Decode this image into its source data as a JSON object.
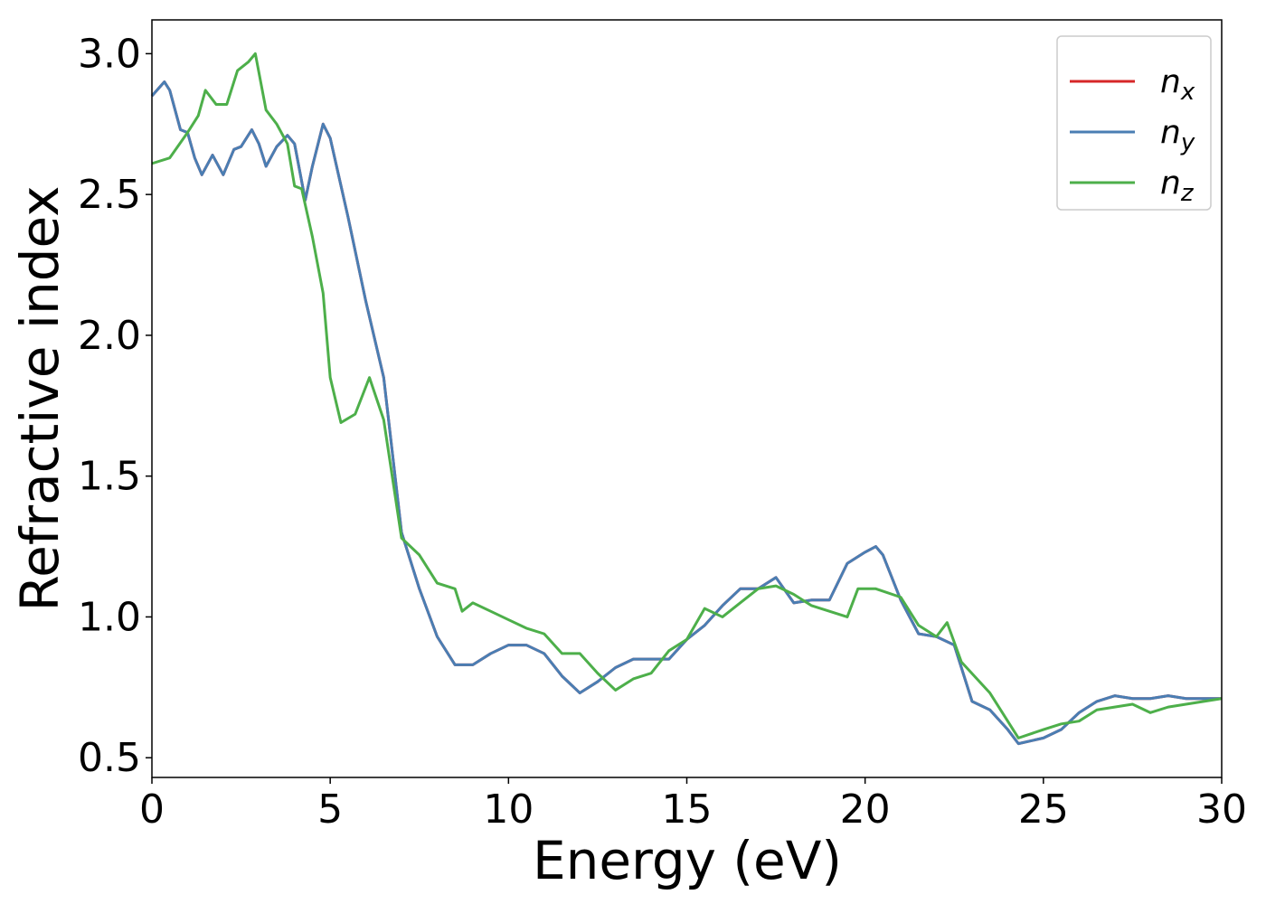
{
  "chart_data": {
    "type": "line",
    "xlabel": "Energy (eV)",
    "ylabel": "Refractive index",
    "xlim": [
      0,
      30
    ],
    "ylim": [
      0.43,
      3.12
    ],
    "xticks": [
      0,
      5,
      10,
      15,
      20,
      25,
      30
    ],
    "yticks": [
      0.5,
      {
        "value": 1,
        "label": "1.0"
      },
      1.5,
      {
        "value": 2,
        "label": "2.0"
      },
      2.5,
      {
        "value": 3,
        "label": "3.0"
      }
    ],
    "grid": false,
    "legend": "upper right",
    "series": [
      {
        "name": "nx",
        "color": "#d62728",
        "x": [
          0,
          0.35,
          0.5,
          0.8,
          1.0,
          1.2,
          1.4,
          1.7,
          2.0,
          2.3,
          2.5,
          2.8,
          3.0,
          3.2,
          3.5,
          3.8,
          4.0,
          4.3,
          4.5,
          4.8,
          5.0,
          5.5,
          6.0,
          6.5,
          7.0,
          7.5,
          8.0,
          8.5,
          9.0,
          9.5,
          10,
          10.5,
          11,
          11.5,
          12,
          12.5,
          13,
          13.5,
          14,
          14.5,
          15,
          15.5,
          16,
          16.5,
          17,
          17.5,
          18,
          18.5,
          19,
          19.5,
          20,
          20.3,
          20.5,
          21,
          21.5,
          22,
          22.5,
          23,
          23.5,
          24,
          24.3,
          25,
          25.5,
          26,
          26.5,
          27,
          27.5,
          28,
          28.5,
          29,
          29.5,
          30
        ],
        "values": [
          2.85,
          2.9,
          2.87,
          2.73,
          2.72,
          2.63,
          2.57,
          2.64,
          2.57,
          2.66,
          2.67,
          2.73,
          2.68,
          2.6,
          2.67,
          2.71,
          2.68,
          2.48,
          2.6,
          2.75,
          2.7,
          2.42,
          2.12,
          1.85,
          1.3,
          1.1,
          0.93,
          0.83,
          0.83,
          0.87,
          0.9,
          0.9,
          0.87,
          0.79,
          0.73,
          0.77,
          0.82,
          0.85,
          0.85,
          0.85,
          0.92,
          0.97,
          1.04,
          1.1,
          1.1,
          1.14,
          1.05,
          1.06,
          1.06,
          1.19,
          1.23,
          1.25,
          1.22,
          1.06,
          0.94,
          0.93,
          0.9,
          0.7,
          0.67,
          0.6,
          0.55,
          0.57,
          0.6,
          0.66,
          0.7,
          0.72,
          0.71,
          0.71,
          0.72,
          0.71,
          0.71,
          0.71
        ]
      },
      {
        "name": "ny",
        "color": "#4a7eb3",
        "x": [
          0,
          0.35,
          0.5,
          0.8,
          1.0,
          1.2,
          1.4,
          1.7,
          2.0,
          2.3,
          2.5,
          2.8,
          3.0,
          3.2,
          3.5,
          3.8,
          4.0,
          4.3,
          4.5,
          4.8,
          5.0,
          5.5,
          6.0,
          6.5,
          7.0,
          7.5,
          8.0,
          8.5,
          9.0,
          9.5,
          10,
          10.5,
          11,
          11.5,
          12,
          12.5,
          13,
          13.5,
          14,
          14.5,
          15,
          15.5,
          16,
          16.5,
          17,
          17.5,
          18,
          18.5,
          19,
          19.5,
          20,
          20.3,
          20.5,
          21,
          21.5,
          22,
          22.5,
          23,
          23.5,
          24,
          24.3,
          25,
          25.5,
          26,
          26.5,
          27,
          27.5,
          28,
          28.5,
          29,
          29.5,
          30
        ],
        "values": [
          2.85,
          2.9,
          2.87,
          2.73,
          2.72,
          2.63,
          2.57,
          2.64,
          2.57,
          2.66,
          2.67,
          2.73,
          2.68,
          2.6,
          2.67,
          2.71,
          2.68,
          2.48,
          2.6,
          2.75,
          2.7,
          2.42,
          2.12,
          1.85,
          1.3,
          1.1,
          0.93,
          0.83,
          0.83,
          0.87,
          0.9,
          0.9,
          0.87,
          0.79,
          0.73,
          0.77,
          0.82,
          0.85,
          0.85,
          0.85,
          0.92,
          0.97,
          1.04,
          1.1,
          1.1,
          1.14,
          1.05,
          1.06,
          1.06,
          1.19,
          1.23,
          1.25,
          1.22,
          1.06,
          0.94,
          0.93,
          0.9,
          0.7,
          0.67,
          0.6,
          0.55,
          0.57,
          0.6,
          0.66,
          0.7,
          0.72,
          0.71,
          0.71,
          0.72,
          0.71,
          0.71,
          0.71
        ]
      },
      {
        "name": "nz",
        "color": "#4daf4a",
        "x": [
          0,
          0.5,
          1.0,
          1.3,
          1.5,
          1.8,
          2.1,
          2.4,
          2.7,
          2.9,
          3.2,
          3.5,
          3.8,
          4.0,
          4.2,
          4.5,
          4.8,
          5.0,
          5.3,
          5.7,
          6.1,
          6.5,
          7.0,
          7.5,
          8.0,
          8.5,
          8.7,
          9.0,
          9.5,
          10,
          10.5,
          11,
          11.5,
          12,
          12.5,
          13,
          13.5,
          14,
          14.5,
          15,
          15.5,
          16,
          16.5,
          17,
          17.5,
          18,
          18.5,
          19,
          19.5,
          19.8,
          20.3,
          21,
          21.5,
          22,
          22.3,
          22.7,
          23.5,
          24.3,
          25,
          25.5,
          26,
          26.5,
          27,
          27.5,
          28,
          28.5,
          29,
          29.5,
          30
        ],
        "values": [
          2.61,
          2.63,
          2.72,
          2.78,
          2.87,
          2.82,
          2.82,
          2.94,
          2.97,
          3.0,
          2.8,
          2.75,
          2.68,
          2.53,
          2.52,
          2.35,
          2.15,
          1.85,
          1.69,
          1.72,
          1.85,
          1.7,
          1.28,
          1.22,
          1.12,
          1.1,
          1.02,
          1.05,
          1.02,
          0.99,
          0.96,
          0.94,
          0.87,
          0.87,
          0.8,
          0.74,
          0.78,
          0.8,
          0.88,
          0.92,
          1.03,
          1.0,
          1.05,
          1.1,
          1.11,
          1.08,
          1.04,
          1.02,
          1.0,
          1.1,
          1.1,
          1.07,
          0.97,
          0.93,
          0.98,
          0.84,
          0.73,
          0.57,
          0.6,
          0.62,
          0.63,
          0.67,
          0.68,
          0.69,
          0.66,
          0.68,
          0.69,
          0.7,
          0.71
        ]
      }
    ]
  }
}
